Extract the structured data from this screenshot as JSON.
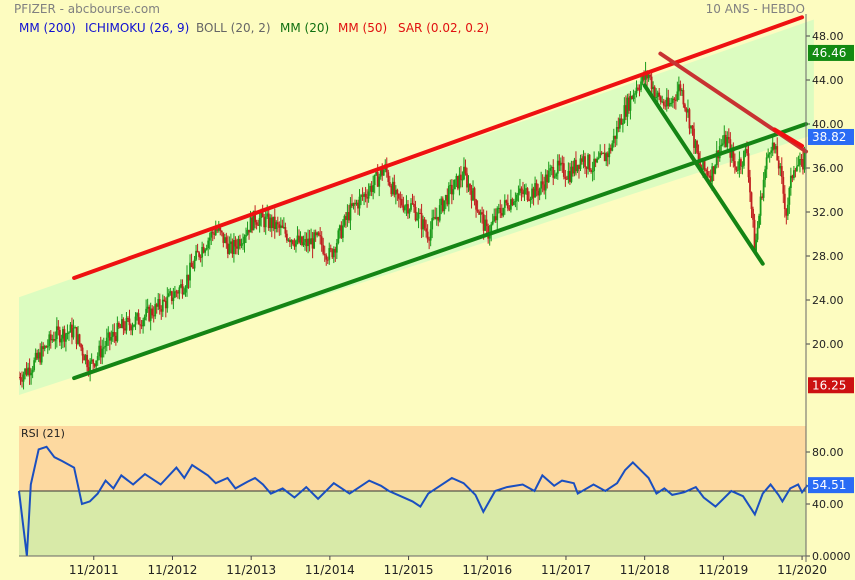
{
  "header": {
    "title": "PFIZER - abcbourse.com",
    "period": "10 ANS - HEBDO"
  },
  "indicators": [
    {
      "label": "MM (200)",
      "color": "#1010d0"
    },
    {
      "label": "ICHIMOKU (26, 9)",
      "color": "#1010d0"
    },
    {
      "label": "BOLL (20, 2)",
      "color": "#666666"
    },
    {
      "label": "MM (20)",
      "color": "#107010"
    },
    {
      "label": "MM (50)",
      "color": "#e01010"
    },
    {
      "label": "SAR (0.02, 0.2)",
      "color": "#e01010"
    }
  ],
  "chart_data": [
    {
      "type": "candlestick",
      "title": "PFIZER - abcbourse.com",
      "ylim": [
        14,
        50
      ],
      "y_ticks": [
        20.0,
        24.0,
        28.0,
        32.0,
        36.0,
        40.0,
        44.0,
        48.0
      ],
      "y_tick_labels": [
        "20.00",
        "24.00",
        "28.00",
        "32.00",
        "36.00",
        "40.00",
        "44.00",
        "48.00"
      ],
      "x_tick_labels": [
        "11/2011",
        "11/2012",
        "11/2013",
        "11/2014",
        "11/2015",
        "11/2016",
        "11/2017",
        "11/2018",
        "11/2019",
        "11/2020"
      ],
      "x_range_years": [
        2010.9,
        2020.9
      ],
      "price_path": [
        [
          2010.9,
          17.0
        ],
        [
          2011.1,
          18.3
        ],
        [
          2011.35,
          20.8
        ],
        [
          2011.6,
          21.2
        ],
        [
          2011.7,
          19.5
        ],
        [
          2011.8,
          18.0
        ],
        [
          2012.0,
          20.0
        ],
        [
          2012.2,
          21.5
        ],
        [
          2012.5,
          22.5
        ],
        [
          2012.8,
          24.0
        ],
        [
          2013.0,
          25.5
        ],
        [
          2013.2,
          28.5
        ],
        [
          2013.4,
          30.5
        ],
        [
          2013.6,
          28.5
        ],
        [
          2013.9,
          31.5
        ],
        [
          2014.1,
          31.0
        ],
        [
          2014.3,
          30.0
        ],
        [
          2014.5,
          29.0
        ],
        [
          2014.7,
          29.5
        ],
        [
          2014.85,
          28.0
        ],
        [
          2015.1,
          32.0
        ],
        [
          2015.4,
          34.5
        ],
        [
          2015.55,
          36.0
        ],
        [
          2015.7,
          33.0
        ],
        [
          2015.9,
          32.5
        ],
        [
          2016.1,
          30.0
        ],
        [
          2016.3,
          33.0
        ],
        [
          2016.55,
          35.5
        ],
        [
          2016.7,
          33.0
        ],
        [
          2016.85,
          30.0
        ],
        [
          2017.0,
          32.0
        ],
        [
          2017.2,
          33.5
        ],
        [
          2017.5,
          34.0
        ],
        [
          2017.7,
          36.0
        ],
        [
          2017.9,
          35.5
        ],
        [
          2018.05,
          37.0
        ],
        [
          2018.2,
          36.0
        ],
        [
          2018.4,
          37.5
        ],
        [
          2018.55,
          40.5
        ],
        [
          2018.75,
          43.5
        ],
        [
          2018.9,
          44.5
        ],
        [
          2019.0,
          42.5
        ],
        [
          2019.15,
          41.5
        ],
        [
          2019.3,
          43.5
        ],
        [
          2019.4,
          41.0
        ],
        [
          2019.55,
          36.0
        ],
        [
          2019.7,
          35.5
        ],
        [
          2019.8,
          38.0
        ],
        [
          2019.9,
          38.5
        ],
        [
          2020.0,
          36.0
        ],
        [
          2020.15,
          37.5
        ],
        [
          2020.25,
          28.5
        ],
        [
          2020.35,
          34.5
        ],
        [
          2020.45,
          38.5
        ],
        [
          2020.55,
          36.5
        ],
        [
          2020.65,
          32.0
        ],
        [
          2020.75,
          36.5
        ],
        [
          2020.85,
          36.0
        ],
        [
          2020.92,
          38.82
        ]
      ],
      "last_price": 38.82,
      "price_labels": [
        {
          "text": "46.46",
          "value": 46.46,
          "color": "#128a12"
        },
        {
          "text": "38.82",
          "value": 38.82,
          "color": "#2a6cf5"
        },
        {
          "text": "16.25",
          "value": 16.25,
          "color": "#cc1111"
        }
      ],
      "channel": {
        "upper": [
          [
            2011.6,
            26.0
          ],
          [
            2021.2,
            50.0
          ]
        ],
        "lower": [
          [
            2011.6,
            17.0
          ],
          [
            2021.2,
            39.5
          ]
        ],
        "band_color": "#dcfcc0"
      },
      "trendlines": [
        {
          "name": "upper-trendline",
          "color": "#ee1111",
          "points": [
            [
              2011.6,
              26.0
            ],
            [
              2020.85,
              49.7
            ]
          ]
        },
        {
          "name": "lower-trendline",
          "color": "#148414",
          "points": [
            [
              2011.6,
              16.9
            ],
            [
              2020.9,
              40.0
            ]
          ]
        },
        {
          "name": "falling-support",
          "color": "#148414",
          "points": [
            [
              2018.85,
              43.5
            ],
            [
              2020.35,
              27.3
            ]
          ]
        },
        {
          "name": "falling-resistance",
          "color": "#c83232",
          "points": [
            [
              2019.05,
              46.4
            ],
            [
              2020.9,
              37.5
            ]
          ]
        },
        {
          "name": "short-red-line",
          "color": "#ee1111",
          "points": [
            [
              2020.5,
              39.5
            ],
            [
              2020.85,
              38.0
            ]
          ]
        }
      ]
    },
    {
      "type": "line",
      "title": "RSI (21)",
      "ylim": [
        0,
        100
      ],
      "y_ticks": [
        0,
        40,
        80
      ],
      "y_tick_labels": [
        "0.0000",
        "40.00",
        "80.00"
      ],
      "overbought_zone": [
        50,
        100
      ],
      "reference_line": 50,
      "last_value": 54.51,
      "last_label": "54.51",
      "values_path": [
        [
          2010.9,
          50
        ],
        [
          2011.0,
          0
        ],
        [
          2011.05,
          55
        ],
        [
          2011.15,
          82
        ],
        [
          2011.25,
          84
        ],
        [
          2011.35,
          76
        ],
        [
          2011.45,
          73
        ],
        [
          2011.6,
          68
        ],
        [
          2011.7,
          40
        ],
        [
          2011.8,
          42
        ],
        [
          2011.9,
          48
        ],
        [
          2012.0,
          58
        ],
        [
          2012.1,
          52
        ],
        [
          2012.2,
          62
        ],
        [
          2012.35,
          55
        ],
        [
          2012.5,
          63
        ],
        [
          2012.7,
          55
        ],
        [
          2012.9,
          68
        ],
        [
          2013.0,
          60
        ],
        [
          2013.1,
          70
        ],
        [
          2013.3,
          62
        ],
        [
          2013.4,
          56
        ],
        [
          2013.55,
          60
        ],
        [
          2013.65,
          52
        ],
        [
          2013.8,
          57
        ],
        [
          2013.9,
          60
        ],
        [
          2014.0,
          55
        ],
        [
          2014.1,
          48
        ],
        [
          2014.25,
          52
        ],
        [
          2014.4,
          45
        ],
        [
          2014.55,
          53
        ],
        [
          2014.7,
          44
        ],
        [
          2014.9,
          56
        ],
        [
          2015.1,
          48
        ],
        [
          2015.2,
          52
        ],
        [
          2015.35,
          58
        ],
        [
          2015.5,
          54
        ],
        [
          2015.6,
          50
        ],
        [
          2015.75,
          46
        ],
        [
          2015.9,
          42
        ],
        [
          2016.0,
          38
        ],
        [
          2016.1,
          48
        ],
        [
          2016.25,
          54
        ],
        [
          2016.4,
          60
        ],
        [
          2016.55,
          56
        ],
        [
          2016.7,
          47
        ],
        [
          2016.8,
          34
        ],
        [
          2016.95,
          50
        ],
        [
          2017.1,
          53
        ],
        [
          2017.3,
          55
        ],
        [
          2017.45,
          50
        ],
        [
          2017.55,
          62
        ],
        [
          2017.7,
          54
        ],
        [
          2017.8,
          58
        ],
        [
          2017.95,
          56
        ],
        [
          2018.0,
          48
        ],
        [
          2018.2,
          55
        ],
        [
          2018.35,
          50
        ],
        [
          2018.5,
          56
        ],
        [
          2018.6,
          66
        ],
        [
          2018.7,
          72
        ],
        [
          2018.8,
          66
        ],
        [
          2018.9,
          60
        ],
        [
          2019.0,
          48
        ],
        [
          2019.1,
          52
        ],
        [
          2019.2,
          47
        ],
        [
          2019.35,
          49
        ],
        [
          2019.5,
          53
        ],
        [
          2019.6,
          45
        ],
        [
          2019.75,
          38
        ],
        [
          2019.85,
          44
        ],
        [
          2019.95,
          50
        ],
        [
          2020.1,
          46
        ],
        [
          2020.25,
          32
        ],
        [
          2020.35,
          48
        ],
        [
          2020.45,
          55
        ],
        [
          2020.55,
          47
        ],
        [
          2020.6,
          42
        ],
        [
          2020.7,
          52
        ],
        [
          2020.8,
          55
        ],
        [
          2020.85,
          49
        ],
        [
          2020.92,
          54.51
        ]
      ]
    }
  ]
}
